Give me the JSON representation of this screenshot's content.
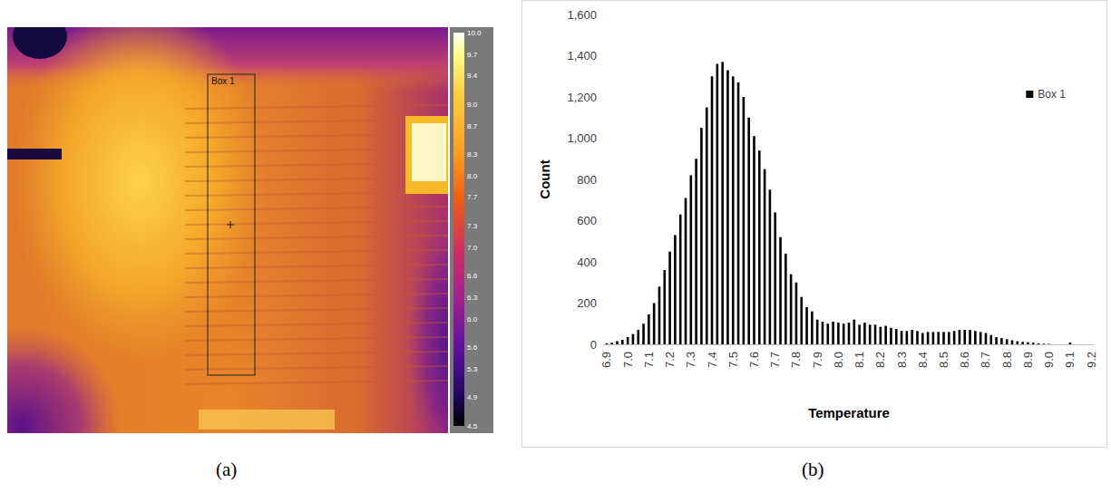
{
  "chart_data": [
    {
      "type": "thermal_image",
      "label": "(a)",
      "box_label": "Box 1",
      "colorbar_range": [
        4.5,
        10.0
      ],
      "colorbar_ticks": [
        {
          "value": 10.0,
          "label": "10.0"
        },
        9.7,
        9.4,
        {
          "value": 9.0,
          "label": "9.0"
        },
        8.7,
        8.3,
        {
          "value": 8.0,
          "label": "8.0"
        },
        7.7,
        7.3,
        {
          "value": 7.0,
          "label": "7.0"
        },
        6.6,
        6.3,
        {
          "value": 6.0,
          "label": "6.0"
        },
        5.6,
        5.3,
        4.9,
        4.5
      ]
    },
    {
      "type": "bar",
      "label": "(b)",
      "x_label": "Temperature",
      "y_label": "Count",
      "categories": [
        "6.9",
        null,
        null,
        null,
        "7.0",
        null,
        null,
        null,
        "7.1",
        null,
        null,
        null,
        "7.2",
        null,
        null,
        null,
        "7.3",
        null,
        null,
        null,
        "7.4",
        null,
        null,
        null,
        "7.5",
        null,
        null,
        null,
        "7.6",
        null,
        null,
        null,
        "7.7",
        null,
        null,
        null,
        "7.8",
        null,
        null,
        null,
        "7.9",
        null,
        null,
        null,
        "8.0",
        null,
        null,
        null,
        "8.1",
        null,
        null,
        null,
        "8.2",
        null,
        null,
        null,
        "8.3",
        null,
        null,
        null,
        "8.4",
        null,
        null,
        null,
        "8.5",
        null,
        null,
        null,
        "8.6",
        null,
        null,
        null,
        "8.7",
        null,
        null,
        null,
        "8.8",
        null,
        null,
        null,
        "8.9",
        null,
        null,
        null,
        "9.0",
        null,
        null,
        null,
        "9.1",
        null,
        null,
        null,
        "9.2"
      ],
      "series": [
        {
          "name": "Box 1",
          "color": "#000000",
          "values": [
            5,
            8,
            15,
            22,
            35,
            50,
            70,
            100,
            145,
            200,
            280,
            360,
            450,
            530,
            630,
            710,
            820,
            900,
            1050,
            1150,
            1300,
            1360,
            1370,
            1330,
            1300,
            1270,
            1200,
            1100,
            1010,
            940,
            850,
            750,
            640,
            520,
            440,
            340,
            300,
            230,
            180,
            160,
            120,
            110,
            100,
            110,
            105,
            100,
            105,
            120,
            95,
            105,
            95,
            95,
            85,
            90,
            80,
            75,
            65,
            65,
            70,
            65,
            55,
            60,
            60,
            60,
            60,
            60,
            65,
            70,
            70,
            70,
            65,
            60,
            55,
            45,
            35,
            30,
            25,
            20,
            15,
            12,
            10,
            8,
            5,
            3,
            2,
            0,
            0,
            0,
            8,
            0,
            0,
            0,
            0
          ]
        }
      ],
      "ylim": [
        0,
        1600
      ],
      "yticks": [
        0,
        200,
        400,
        600,
        800,
        1000,
        1200,
        1400,
        1600
      ],
      "grid": false,
      "legend": "upper right"
    }
  ]
}
